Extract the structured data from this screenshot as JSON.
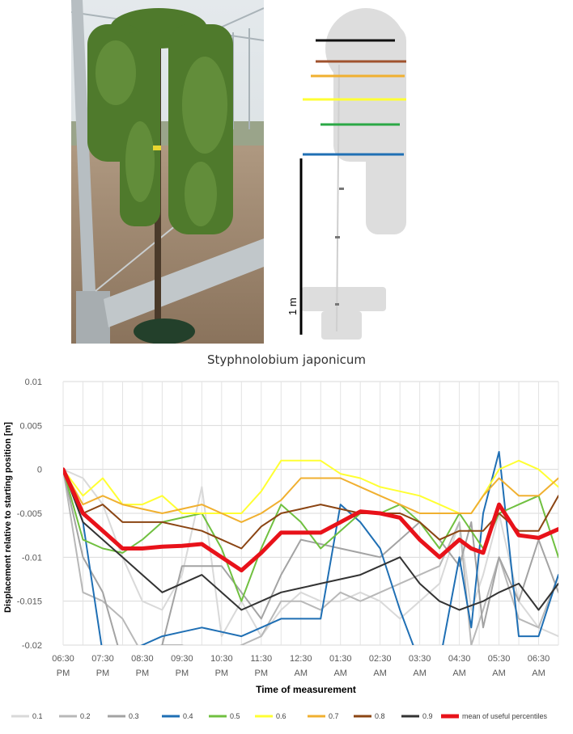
{
  "scale_bar_label": "1 m",
  "caption": "Styphnolobium japonicum",
  "chart_data": {
    "type": "line",
    "xlabel": "Time of measurement",
    "ylabel": "Displacement relative to starting position [m]",
    "ylim": [
      -0.02,
      0.01
    ],
    "yticks": [
      "0.01",
      "0.005",
      "0",
      "-0.005",
      "-0.01",
      "-0.015",
      "-0.02"
    ],
    "ytick_values": [
      0.01,
      0.005,
      0,
      -0.005,
      -0.01,
      -0.015,
      -0.02
    ],
    "xtick_labels": [
      [
        "06:30",
        "PM"
      ],
      [
        "07:30",
        "PM"
      ],
      [
        "08:30",
        "PM"
      ],
      [
        "09:30",
        "PM"
      ],
      [
        "10:30",
        "PM"
      ],
      [
        "11:30",
        "PM"
      ],
      [
        "12:30",
        "AM"
      ],
      [
        "01:30",
        "AM"
      ],
      [
        "02:30",
        "AM"
      ],
      [
        "03:30",
        "AM"
      ],
      [
        "04:30",
        "AM"
      ],
      [
        "05:30",
        "AM"
      ],
      [
        "06:30",
        "AM"
      ]
    ],
    "xlim": [
      0,
      12.5
    ],
    "grid": true,
    "legend_position": "bottom",
    "series": [
      {
        "name": "0.1",
        "color": "#d9d9d9",
        "width": 2,
        "x": [
          0,
          0.5,
          1,
          1.5,
          2,
          2.5,
          3,
          3.5,
          4,
          4.5,
          5,
          5.5,
          6,
          6.5,
          7,
          7.5,
          8,
          8.5,
          9,
          9.5,
          10,
          10.3,
          10.6,
          11,
          11.5,
          12,
          12.5
        ],
        "y": [
          0,
          -0.001,
          -0.004,
          -0.01,
          -0.015,
          -0.016,
          -0.012,
          -0.002,
          -0.019,
          -0.015,
          -0.019,
          -0.016,
          -0.014,
          -0.015,
          -0.015,
          -0.014,
          -0.015,
          -0.017,
          -0.015,
          -0.013,
          -0.006,
          -0.016,
          -0.012,
          -0.005,
          -0.015,
          -0.018,
          -0.019
        ]
      },
      {
        "name": "0.2",
        "color": "#b8b8b8",
        "width": 2,
        "x": [
          0,
          0.5,
          1,
          1.5,
          2,
          2.5,
          3,
          3.5,
          4,
          4.5,
          5,
          5.5,
          6,
          6.5,
          7,
          7.5,
          8,
          8.5,
          9,
          9.5,
          10,
          10.3,
          10.6,
          11,
          11.5,
          12,
          12.5
        ],
        "y": [
          0,
          -0.014,
          -0.015,
          -0.017,
          -0.021,
          -0.02,
          -0.02,
          -0.021,
          -0.021,
          -0.02,
          -0.019,
          -0.015,
          -0.015,
          -0.016,
          -0.014,
          -0.015,
          -0.014,
          -0.013,
          -0.012,
          -0.011,
          -0.006,
          -0.02,
          -0.016,
          -0.01,
          -0.017,
          -0.018,
          -0.012
        ]
      },
      {
        "name": "0.3",
        "color": "#a3a3a3",
        "width": 2,
        "x": [
          0,
          0.5,
          1,
          1.5,
          2,
          2.5,
          3,
          3.5,
          4,
          4.5,
          5,
          5.5,
          6,
          6.5,
          7,
          7.5,
          8,
          8.5,
          9,
          9.5,
          10,
          10.3,
          10.6,
          11,
          11.5,
          12,
          12.5
        ],
        "y": [
          0,
          -0.01,
          -0.014,
          -0.022,
          -0.021,
          -0.02,
          -0.011,
          -0.011,
          -0.011,
          -0.014,
          -0.017,
          -0.012,
          -0.008,
          -0.0085,
          -0.009,
          -0.0095,
          -0.01,
          -0.008,
          -0.006,
          -0.008,
          -0.011,
          -0.006,
          -0.018,
          -0.01,
          -0.015,
          -0.008,
          -0.014
        ]
      },
      {
        "name": "0.4",
        "color": "#1f6fb4",
        "width": 2,
        "x": [
          0,
          0.5,
          1,
          1.5,
          2,
          2.5,
          3,
          3.5,
          4,
          4.5,
          5,
          5.5,
          6,
          6.5,
          7,
          7.5,
          8,
          8.5,
          9,
          9.5,
          10,
          10.3,
          10.6,
          11,
          11.5,
          12,
          12.5
        ],
        "y": [
          0,
          -0.006,
          -0.021,
          -0.021,
          -0.02,
          -0.019,
          -0.0185,
          -0.018,
          -0.0185,
          -0.019,
          -0.018,
          -0.017,
          -0.017,
          -0.017,
          -0.004,
          -0.006,
          -0.009,
          -0.016,
          -0.022,
          -0.022,
          -0.01,
          -0.018,
          -0.005,
          0.002,
          -0.019,
          -0.019,
          -0.012
        ]
      },
      {
        "name": "0.5",
        "color": "#70c040",
        "width": 2,
        "x": [
          0,
          0.5,
          1,
          1.5,
          2,
          2.5,
          3,
          3.5,
          4,
          4.5,
          5,
          5.5,
          6,
          6.5,
          7,
          7.5,
          8,
          8.5,
          9,
          9.5,
          10,
          10.3,
          10.6,
          11,
          11.5,
          12,
          12.5
        ],
        "y": [
          0,
          -0.008,
          -0.009,
          -0.0095,
          -0.008,
          -0.006,
          -0.0055,
          -0.005,
          -0.009,
          -0.015,
          -0.009,
          -0.004,
          -0.006,
          -0.009,
          -0.007,
          -0.005,
          -0.005,
          -0.004,
          -0.006,
          -0.009,
          -0.005,
          -0.007,
          -0.009,
          -0.005,
          -0.004,
          -0.003,
          -0.01
        ]
      },
      {
        "name": "0.6",
        "color": "#ffff33",
        "width": 2,
        "x": [
          0,
          0.5,
          1,
          1.5,
          2,
          2.5,
          3,
          3.5,
          4,
          4.5,
          5,
          5.5,
          6,
          6.5,
          7,
          7.5,
          8,
          8.5,
          9,
          9.5,
          10,
          10.3,
          10.6,
          11,
          11.5,
          12,
          12.5
        ],
        "y": [
          0,
          -0.003,
          -0.001,
          -0.004,
          -0.004,
          -0.003,
          -0.005,
          -0.005,
          -0.005,
          -0.005,
          -0.0025,
          0.001,
          0.001,
          0.001,
          -0.0005,
          -0.001,
          -0.002,
          -0.0025,
          -0.003,
          -0.004,
          -0.005,
          -0.005,
          -0.003,
          0,
          0.001,
          0,
          -0.002
        ]
      },
      {
        "name": "0.7",
        "color": "#f0b030",
        "width": 2,
        "x": [
          0,
          0.5,
          1,
          1.5,
          2,
          2.5,
          3,
          3.5,
          4,
          4.5,
          5,
          5.5,
          6,
          6.5,
          7,
          7.5,
          8,
          8.5,
          9,
          9.5,
          10,
          10.3,
          10.6,
          11,
          11.5,
          12,
          12.5
        ],
        "y": [
          0,
          -0.004,
          -0.003,
          -0.004,
          -0.0045,
          -0.005,
          -0.0045,
          -0.004,
          -0.005,
          -0.006,
          -0.005,
          -0.0035,
          -0.001,
          -0.001,
          -0.001,
          -0.002,
          -0.003,
          -0.004,
          -0.005,
          -0.005,
          -0.005,
          -0.005,
          -0.003,
          -0.001,
          -0.003,
          -0.003,
          -0.001
        ]
      },
      {
        "name": "0.8",
        "color": "#8b4513",
        "width": 2,
        "x": [
          0,
          0.5,
          1,
          1.5,
          2,
          2.5,
          3,
          3.5,
          4,
          4.5,
          5,
          5.5,
          6,
          6.5,
          7,
          7.5,
          8,
          8.5,
          9,
          9.5,
          10,
          10.3,
          10.6,
          11,
          11.5,
          12,
          12.5
        ],
        "y": [
          0,
          -0.005,
          -0.004,
          -0.006,
          -0.006,
          -0.006,
          -0.0065,
          -0.007,
          -0.008,
          -0.009,
          -0.0065,
          -0.005,
          -0.0045,
          -0.004,
          -0.0045,
          -0.005,
          -0.005,
          -0.005,
          -0.006,
          -0.008,
          -0.007,
          -0.007,
          -0.007,
          -0.005,
          -0.007,
          -0.007,
          -0.003
        ]
      },
      {
        "name": "0.9",
        "color": "#333333",
        "width": 2,
        "x": [
          0,
          0.5,
          1,
          1.5,
          2,
          2.5,
          3,
          3.5,
          4,
          4.5,
          5,
          5.5,
          6,
          6.5,
          7,
          7.5,
          8,
          8.5,
          9,
          9.5,
          10,
          10.3,
          10.6,
          11,
          11.5,
          12,
          12.5
        ],
        "y": [
          0,
          -0.006,
          -0.008,
          -0.01,
          -0.012,
          -0.014,
          -0.013,
          -0.012,
          -0.014,
          -0.016,
          -0.015,
          -0.014,
          -0.0135,
          -0.013,
          -0.0125,
          -0.012,
          -0.011,
          -0.01,
          -0.013,
          -0.015,
          -0.016,
          -0.0155,
          -0.015,
          -0.014,
          -0.013,
          -0.016,
          -0.013
        ]
      },
      {
        "name": "mean of useful percentiles",
        "color": "#e8121a",
        "width": 5,
        "x": [
          0,
          0.5,
          1,
          1.5,
          2,
          2.5,
          3,
          3.5,
          4,
          4.5,
          5,
          5.5,
          6,
          6.5,
          7,
          7.5,
          8,
          8.5,
          9,
          9.5,
          10,
          10.3,
          10.6,
          11,
          11.5,
          12,
          12.5
        ],
        "y": [
          0,
          -0.005,
          -0.007,
          -0.009,
          -0.009,
          -0.0088,
          -0.0087,
          -0.0085,
          -0.01,
          -0.0115,
          -0.0095,
          -0.0072,
          -0.0072,
          -0.0072,
          -0.006,
          -0.0048,
          -0.005,
          -0.0055,
          -0.008,
          -0.01,
          -0.008,
          -0.009,
          -0.0095,
          -0.004,
          -0.0075,
          -0.0078,
          -0.0068
        ]
      }
    ]
  }
}
